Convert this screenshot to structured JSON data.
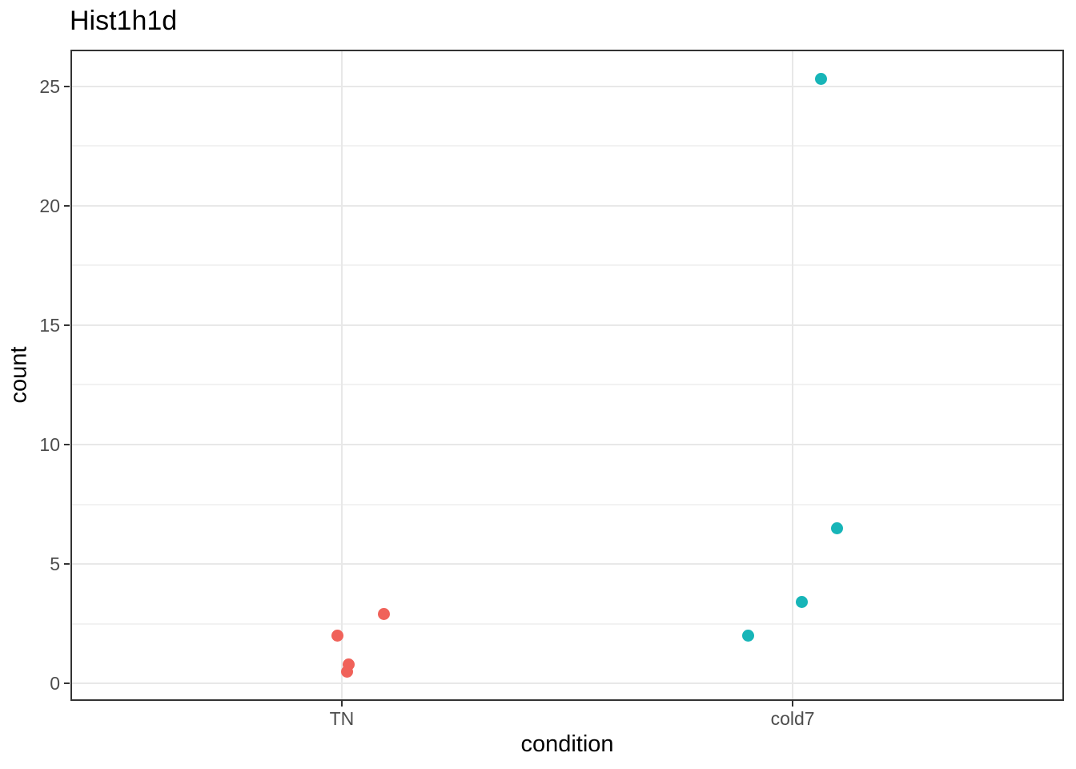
{
  "chart_data": {
    "type": "scatter",
    "title": "Hist1h1d",
    "xlabel": "condition",
    "ylabel": "count",
    "legend": "none",
    "grid": "on",
    "x_axis": {
      "categories": [
        "TN",
        "cold7"
      ]
    },
    "y_axis": {
      "ticks": [
        0,
        5,
        10,
        15,
        20,
        25
      ],
      "minor_ticks": [
        2.5,
        7.5,
        12.5,
        17.5,
        22.5
      ],
      "range": [
        -0.7,
        26.5
      ]
    },
    "series": [
      {
        "name": "TN",
        "color": "#F0625A",
        "points": [
          {
            "x": "TN",
            "x_jitter": -0.01,
            "count": 2.0
          },
          {
            "x": "TN",
            "x_jitter": 0.094,
            "count": 2.9
          },
          {
            "x": "TN",
            "x_jitter": 0.016,
            "count": 0.8
          },
          {
            "x": "TN",
            "x_jitter": 0.012,
            "count": 0.5
          }
        ]
      },
      {
        "name": "cold7",
        "color": "#17B5B8",
        "points": [
          {
            "x": "cold7",
            "x_jitter": -0.098,
            "count": 2.0
          },
          {
            "x": "cold7",
            "x_jitter": 0.02,
            "count": 3.4
          },
          {
            "x": "cold7",
            "x_jitter": 0.098,
            "count": 6.5
          },
          {
            "x": "cold7",
            "x_jitter": 0.062,
            "count": 25.3
          }
        ]
      }
    ],
    "colors": {
      "panel_border": "#333333",
      "major_grid": "#E8E8E8",
      "minor_grid": "#F2F2F2",
      "tick_label": "#4D4D4D",
      "axis_title": "#000000"
    }
  }
}
